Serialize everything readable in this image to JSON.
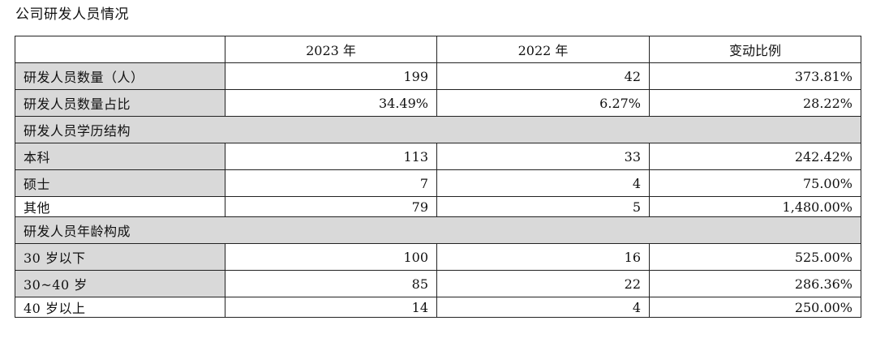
{
  "title": "公司研发人员情况",
  "columns": [
    "",
    "2023 年",
    "2022 年",
    "变动比例"
  ],
  "rows": [
    {
      "type": "data",
      "label": "研发人员数量（人）",
      "values": [
        "199",
        "42",
        "373.81%"
      ]
    },
    {
      "type": "data",
      "label": "研发人员数量占比",
      "values": [
        "34.49%",
        "6.27%",
        "28.22%"
      ]
    },
    {
      "type": "section",
      "label": "研发人员学历结构"
    },
    {
      "type": "data",
      "label": "本科",
      "values": [
        "113",
        "33",
        "242.42%"
      ]
    },
    {
      "type": "data",
      "label": "硕士",
      "values": [
        "7",
        "4",
        "75.00%"
      ]
    },
    {
      "type": "data-plain",
      "label": "其他",
      "values": [
        "79",
        "5",
        "1,480.00%"
      ]
    },
    {
      "type": "section",
      "label": "研发人员年龄构成"
    },
    {
      "type": "data",
      "label": "30 岁以下",
      "values": [
        "100",
        "16",
        "525.00%"
      ]
    },
    {
      "type": "data",
      "label": "30~40 岁",
      "values": [
        "85",
        "22",
        "286.36%"
      ]
    },
    {
      "type": "data-plain",
      "label": "40 岁以上",
      "values": [
        "14",
        "4",
        "250.00%"
      ]
    }
  ]
}
